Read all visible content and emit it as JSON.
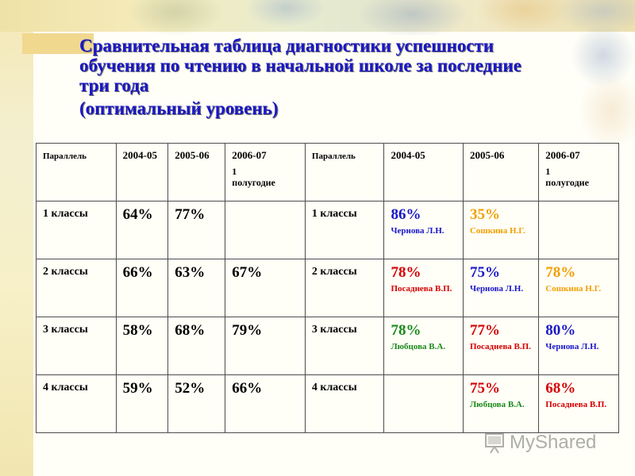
{
  "title": {
    "line1": "Сравнительная таблица диагностики успешности",
    "line2": "обучения по чтению в начальной школе за последние",
    "line3": "три года",
    "line4": "(оптимальный уровень)"
  },
  "header": {
    "parallel_left": "Параллель",
    "y1": "2004-05",
    "y2": "2005-06",
    "y3": "2006-07",
    "y3_sub1": "1",
    "y3_sub2": "полугодие",
    "parallel_right": "Параллель",
    "y4": "2004-05",
    "y5": "2005-06",
    "y6": "2006-07",
    "y6_sub1": "1",
    "y6_sub2": "полугодие"
  },
  "rows": [
    {
      "label_left": "1 классы",
      "v1": "64%",
      "v2": "77%",
      "v3": "",
      "label_right": "1 классы",
      "r1_pct": "86%",
      "r1_name": "Чернова Л.Н.",
      "r2_pct": "35%",
      "r2_name": "Сошкина Н.Г.",
      "r3_pct": "",
      "r3_name": ""
    },
    {
      "label_left": "2 классы",
      "v1": "66%",
      "v2": "63%",
      "v3": "67%",
      "label_right": "2 классы",
      "r1_pct": "78%",
      "r1_name": "Посаднева В.П.",
      "r2_pct": "75%",
      "r2_name": "Чернова Л.Н.",
      "r3_pct": "78%",
      "r3_name": "Сошкина Н.Г."
    },
    {
      "label_left": "3 классы",
      "v1": "58%",
      "v2": "68%",
      "v3": "79%",
      "label_right": "3 классы",
      "r1_pct": "78%",
      "r1_name": "Любцова В.А.",
      "r2_pct": "77%",
      "r2_name": "Посаднева В.П.",
      "r3_pct": "80%",
      "r3_name": "Чернова Л.Н."
    },
    {
      "label_left": "4 классы",
      "v1": "59%",
      "v2": "52%",
      "v3": "66%",
      "label_right": "4 классы",
      "r1_pct": "",
      "r1_name": "",
      "r2_pct": "75%",
      "r2_name": "Любцова В.А.",
      "r3_pct": "68%",
      "r3_name": "Посаднева В.П."
    }
  ],
  "colors": {
    "title": "#1a17c8",
    "blue": "#1a17c8",
    "orange": "#f0a000",
    "red": "#d60000",
    "green": "#1a8a1a"
  },
  "watermark": {
    "text": "MyShared",
    "icon": "presentation-board-icon"
  }
}
